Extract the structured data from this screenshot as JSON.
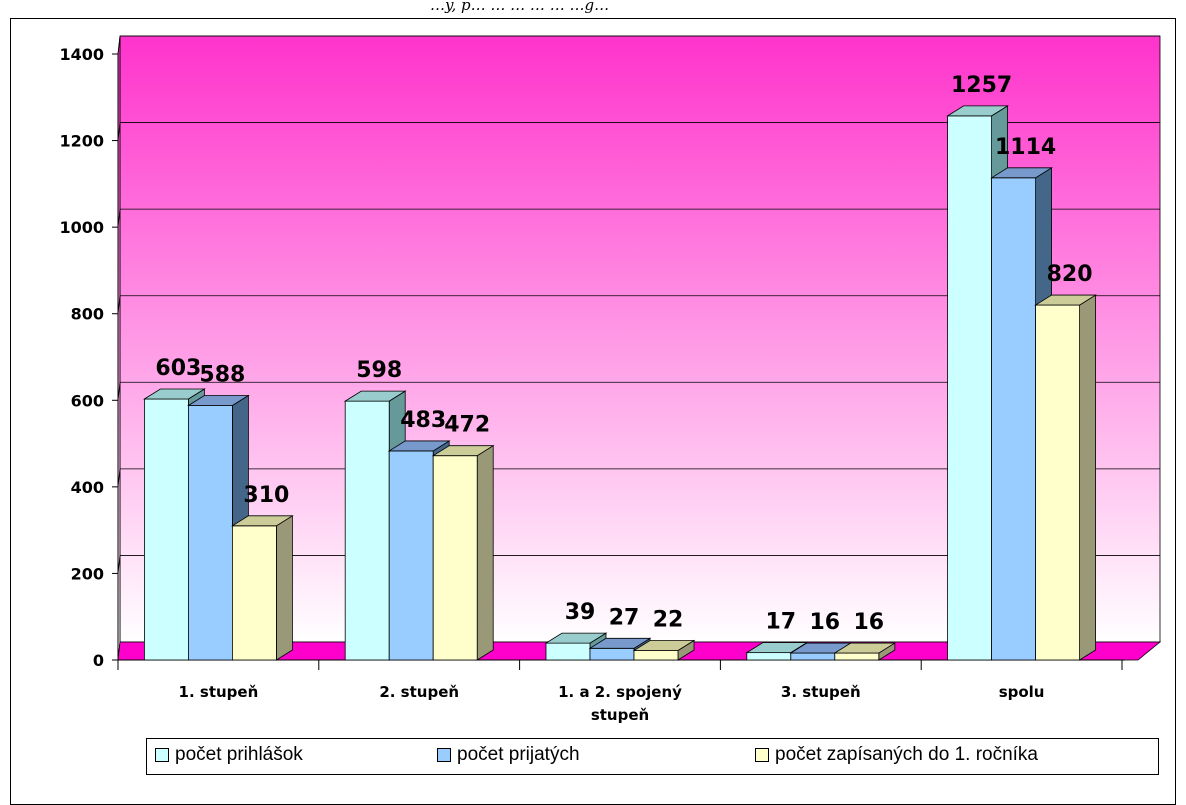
{
  "header": {
    "caption": "…y, p… … … … … …g…"
  },
  "chart_data": {
    "type": "bar",
    "categories": [
      "1. stupeň",
      "2. stupeň",
      "1. a 2. spojený stupeň",
      "3. stupeň",
      "spolu"
    ],
    "category_lines": [
      [
        "1. stupeň"
      ],
      [
        "2. stupeň"
      ],
      [
        "1. a 2. spojený",
        "stupeň"
      ],
      [
        "3. stupeň"
      ],
      [
        "spolu"
      ]
    ],
    "series": [
      {
        "name": "počet prihlášok",
        "values": [
          603,
          598,
          39,
          17,
          1257
        ]
      },
      {
        "name": "počet prijatých",
        "values": [
          588,
          483,
          27,
          16,
          1114
        ]
      },
      {
        "name": "počet zapísaných do 1. ročníka",
        "values": [
          310,
          472,
          22,
          16,
          820
        ]
      }
    ],
    "ylim": [
      0,
      1400
    ],
    "yticks": [
      "0",
      "200",
      "400",
      "600",
      "800",
      "1000",
      "1200",
      "1400"
    ],
    "grid": true,
    "legend_position": "bottom",
    "colors": {
      "series_front": [
        "#CCFFFF",
        "#99CCFF",
        "#FFFFCC"
      ],
      "series_top": [
        "#99CCCC",
        "#7799CC",
        "#CCCC99"
      ],
      "series_side": [
        "#669999",
        "#446688",
        "#999977"
      ],
      "wall_top": "#FF33CC",
      "wall_bottom": "#FFFFFF",
      "floor": "#FF00CC"
    }
  }
}
